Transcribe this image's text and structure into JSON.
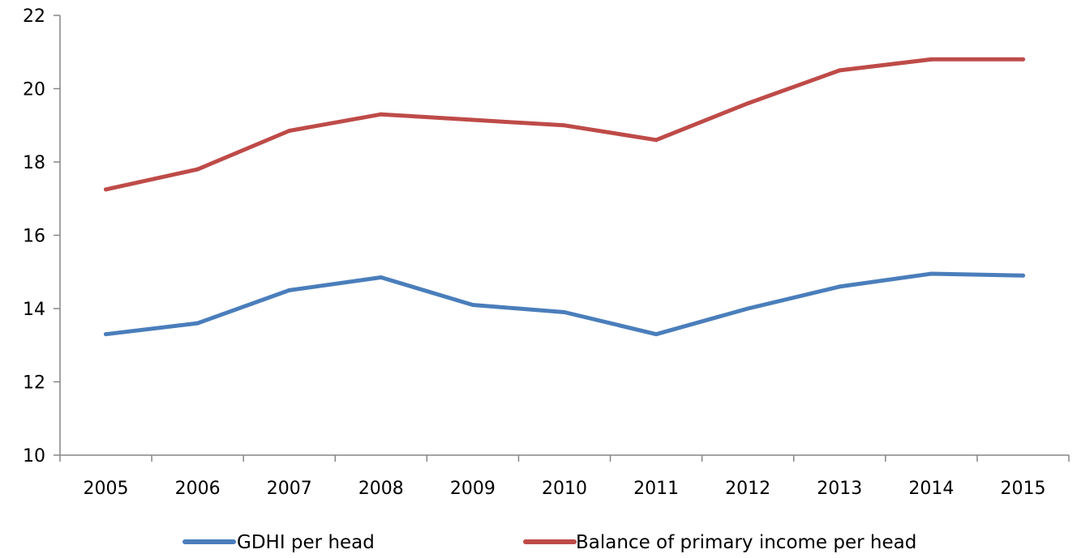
{
  "chart_data": {
    "type": "line",
    "title": "",
    "xlabel": "",
    "ylabel": "",
    "categories": [
      "2005",
      "2006",
      "2007",
      "2008",
      "2009",
      "2010",
      "2011",
      "2012",
      "2013",
      "2014",
      "2015"
    ],
    "ylim": [
      10,
      22
    ],
    "yticks": [
      10,
      12,
      14,
      16,
      18,
      20,
      22
    ],
    "grid": false,
    "legend_position": "bottom",
    "series": [
      {
        "name": "GDHI per head",
        "color": "#4a7ebb",
        "values": [
          13.3,
          13.6,
          14.5,
          14.85,
          14.1,
          13.9,
          13.3,
          14.0,
          14.6,
          14.95,
          14.9
        ]
      },
      {
        "name": "Balance of primary income per head",
        "color": "#be4b48",
        "values": [
          17.25,
          17.8,
          18.85,
          19.3,
          19.15,
          19.0,
          18.6,
          19.6,
          20.5,
          20.8,
          20.8
        ]
      }
    ]
  }
}
